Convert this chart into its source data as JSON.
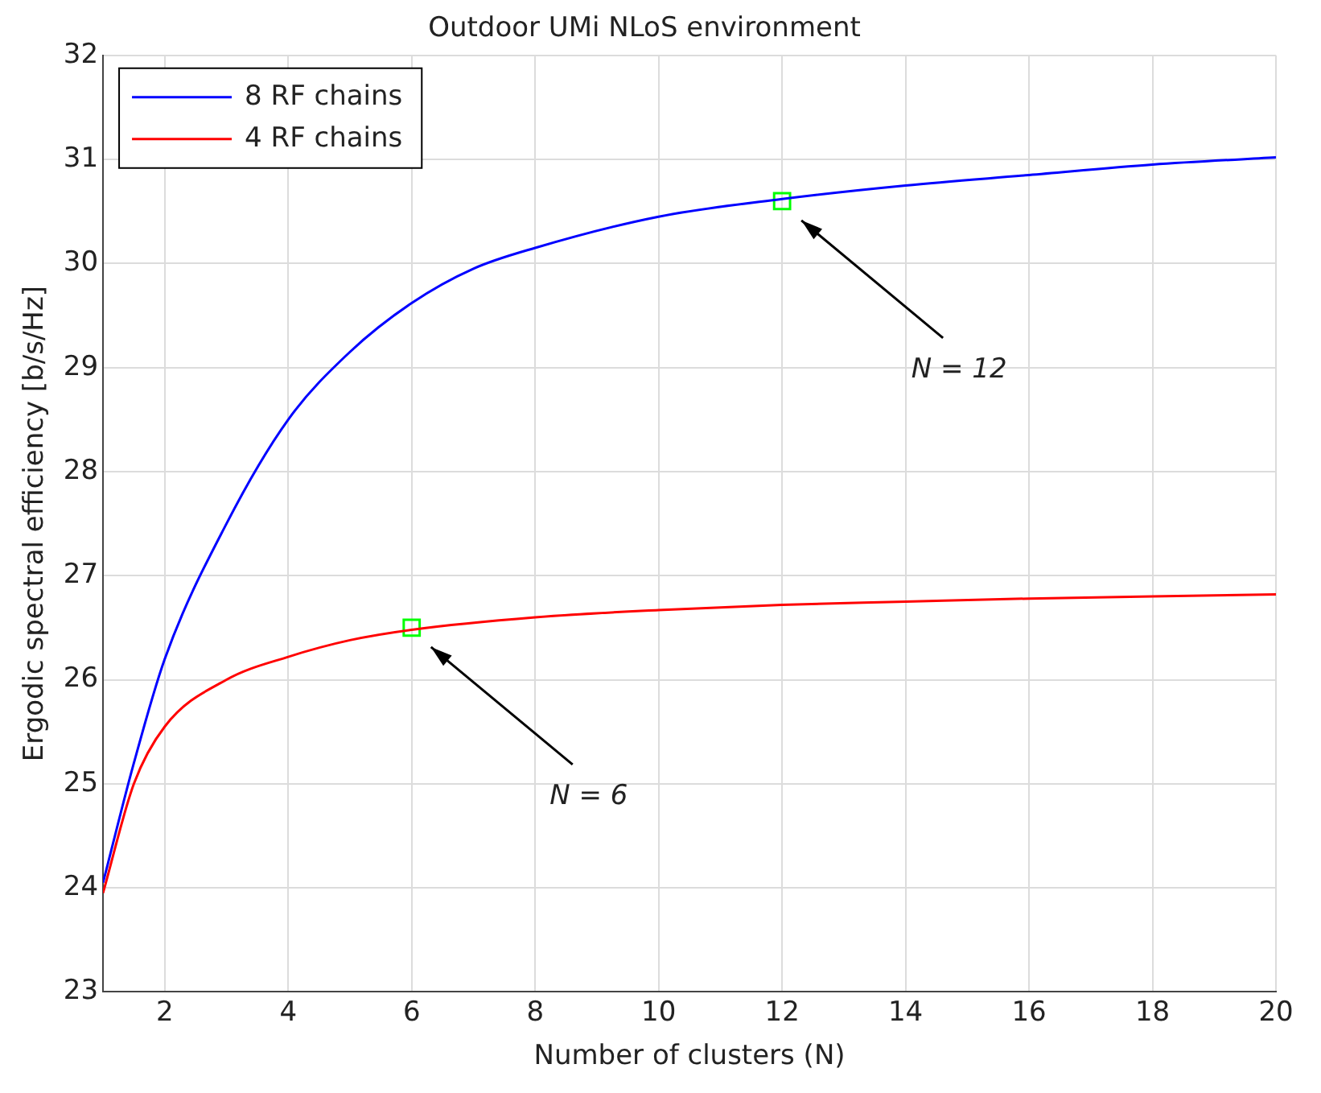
{
  "chart_data": {
    "type": "line",
    "title": "Outdoor UMi NLoS environment",
    "xlabel": "Number of clusters (N)",
    "ylabel": "Ergodic spectral efficiency [b/s/Hz]",
    "xlim": [
      1,
      20
    ],
    "xticks": [
      2,
      4,
      6,
      8,
      10,
      12,
      14,
      16,
      18,
      20
    ],
    "ylim": [
      23,
      32
    ],
    "yticks": [
      23,
      24,
      25,
      26,
      27,
      28,
      29,
      30,
      31,
      32
    ],
    "grid": true,
    "legend": "top left",
    "marker": "none",
    "line_style": "solid",
    "series": [
      {
        "name": "8 RF chains",
        "color": "#0000ff",
        "x": [
          1,
          1.5,
          2,
          3,
          4,
          5,
          6,
          7,
          8,
          10,
          12,
          14,
          16,
          18,
          20
        ],
        "values": [
          24.05,
          25.2,
          26.2,
          27.5,
          28.5,
          29.15,
          29.62,
          29.95,
          30.15,
          30.45,
          30.62,
          30.75,
          30.85,
          30.95,
          31.02
        ]
      },
      {
        "name": "4 RF chains",
        "color": "#ff0000",
        "x": [
          1,
          1.5,
          2,
          3,
          4,
          5,
          6,
          8,
          10,
          12,
          14,
          16,
          18,
          20
        ],
        "values": [
          23.95,
          25.0,
          25.55,
          26.0,
          26.22,
          26.38,
          26.48,
          26.6,
          26.67,
          26.72,
          26.75,
          26.78,
          26.8,
          26.82
        ]
      },
      {
        "type": "scatter",
        "marker": "square",
        "color": "#00ff00",
        "x": [
          12,
          6
        ],
        "values": [
          30.6,
          26.5
        ]
      }
    ],
    "annotations": [
      "N = 12",
      "N = 6"
    ]
  }
}
